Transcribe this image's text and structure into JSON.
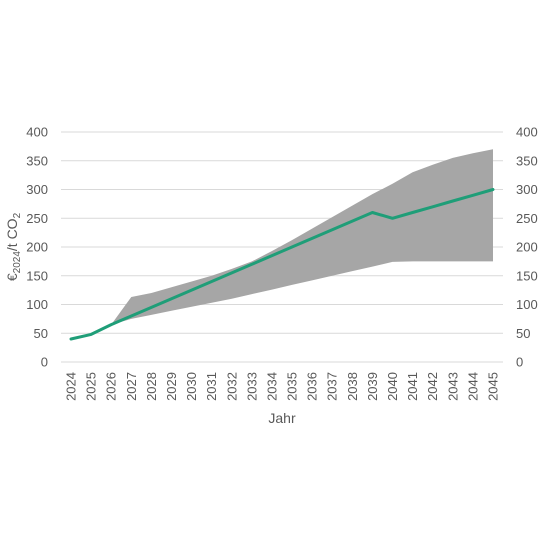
{
  "chart_data": {
    "type": "line",
    "xlabel": "Jahr",
    "ylabel": {
      "prefix": "€",
      "sub1": "2024",
      "mid": "/t CO",
      "sub2": "2"
    },
    "ylim": [
      0,
      400
    ],
    "yticks": [
      0,
      50,
      100,
      150,
      200,
      250,
      300,
      350,
      400
    ],
    "right_axis": true,
    "grid": "horizontal",
    "x": [
      "2024",
      "2025",
      "2026",
      "2027",
      "2028",
      "2029",
      "2030",
      "2031",
      "2032",
      "2033",
      "2034",
      "2035",
      "2036",
      "2037",
      "2038",
      "2039",
      "2040",
      "2041",
      "2042",
      "2043",
      "2044",
      "2045"
    ],
    "band": {
      "upper": [
        40,
        50,
        65,
        113,
        120,
        130,
        140,
        150,
        162,
        175,
        193,
        212,
        232,
        252,
        272,
        292,
        310,
        330,
        343,
        355,
        363,
        370
      ],
      "lower": [
        40,
        48,
        65,
        75,
        82,
        89,
        96,
        103,
        110,
        118,
        126,
        134,
        142,
        150,
        158,
        166,
        174,
        175,
        175,
        175,
        175,
        175
      ],
      "color": "#a6a6a6"
    },
    "series": [
      {
        "values": [
          40,
          48,
          65,
          80,
          95,
          110,
          125,
          140,
          155,
          170,
          185,
          200,
          215,
          230,
          245,
          260,
          250,
          260,
          270,
          280,
          290,
          300
        ],
        "color": "#1f9e78"
      }
    ]
  }
}
